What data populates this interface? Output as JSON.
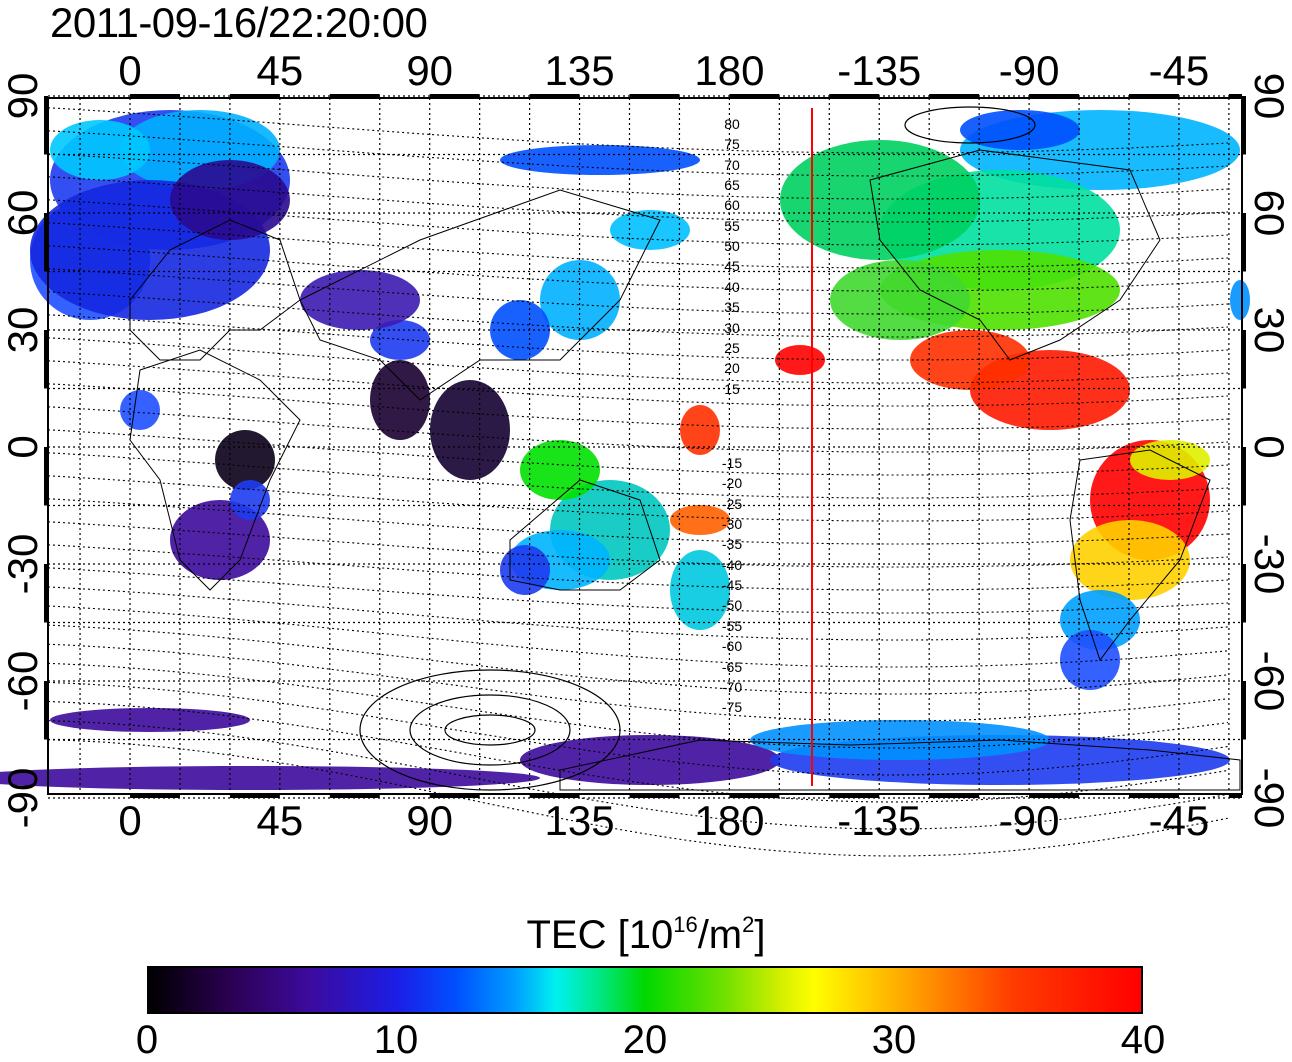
{
  "title": "2011-09-16/22:20:00",
  "map": {
    "lon_ticks": [
      "0",
      "45",
      "90",
      "135",
      "180",
      "-135",
      "-90",
      "-45"
    ],
    "lat_ticks": [
      "90",
      "60",
      "30",
      "0",
      "-30",
      "-60",
      "-90"
    ],
    "magnetic_latitude_labels": [
      "80",
      "75",
      "70",
      "65",
      "60",
      "55",
      "50",
      "45",
      "40",
      "35",
      "30",
      "25",
      "20",
      "15",
      "-15",
      "-20",
      "-25",
      "-30",
      "-35",
      "-40",
      "-45",
      "-50",
      "-55",
      "-60",
      "-65",
      "-70",
      "-75"
    ],
    "marker_line_color": "#ff0000",
    "grid": "dotted"
  },
  "colorbar": {
    "label_text": "TEC  [10",
    "label_exp1": "16",
    "label_unit": "/m",
    "label_exp2": "2",
    "label_close": "]",
    "ticks": [
      "0",
      "10",
      "20",
      "30",
      "40"
    ],
    "range": [
      0,
      40
    ],
    "colormap": [
      "#000000",
      "#3c0a9c",
      "#0050ff",
      "#00f0f0",
      "#00d800",
      "#ffff00",
      "#ff0000"
    ]
  }
}
